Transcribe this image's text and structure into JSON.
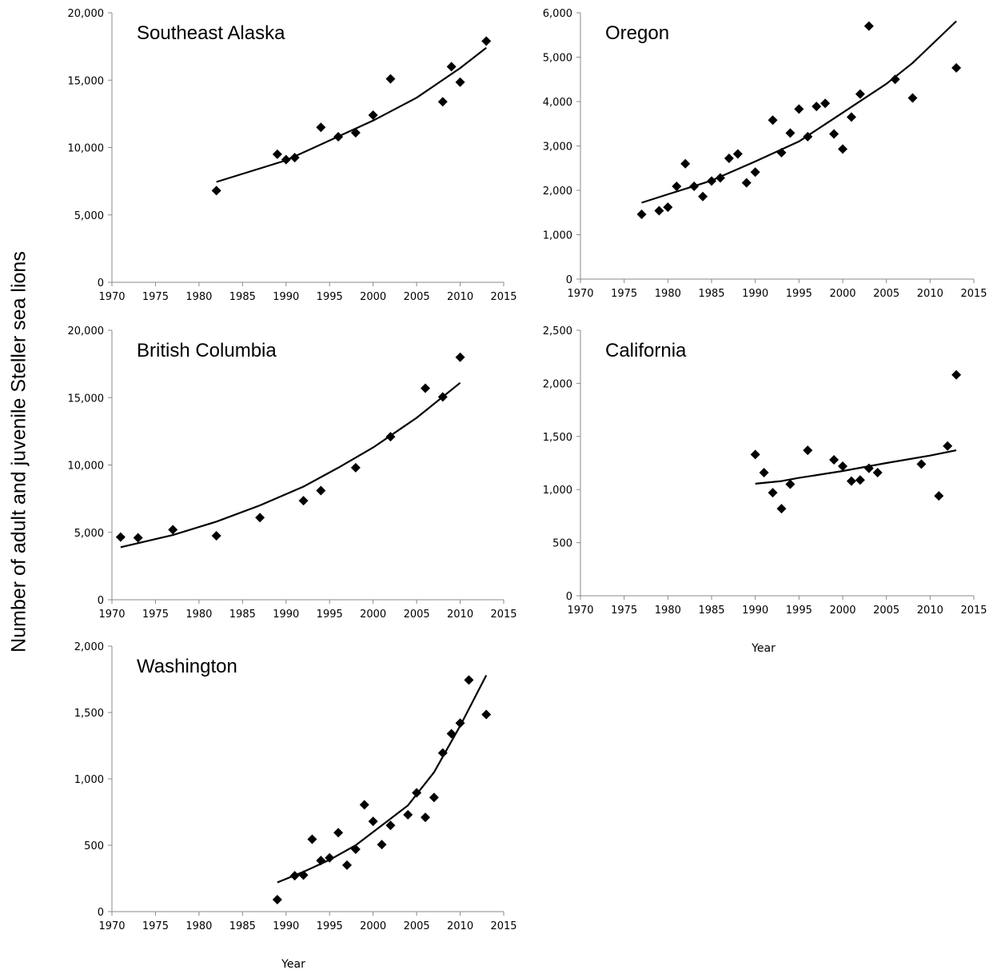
{
  "figure": {
    "y_title": "Number of adult and juvenile Steller sea lions",
    "x_title_right": "Year",
    "x_title_bottom": "Year"
  },
  "chart_data": [
    {
      "type": "scatter",
      "title": "Southeast Alaska",
      "xlabel": "",
      "ylabel": "",
      "xlim": [
        1970,
        2015
      ],
      "ylim": [
        0,
        20000
      ],
      "xticks": [
        "1970",
        "1975",
        "1980",
        "1985",
        "1990",
        "1995",
        "2000",
        "2005",
        "2010",
        "2015"
      ],
      "yticks": [
        "0",
        "5,000",
        "10,000",
        "15,000",
        "20,000"
      ],
      "points": [
        [
          1982,
          6800
        ],
        [
          1989,
          9500
        ],
        [
          1990,
          9100
        ],
        [
          1991,
          9250
        ],
        [
          1994,
          11500
        ],
        [
          1996,
          10800
        ],
        [
          1998,
          11100
        ],
        [
          2000,
          12400
        ],
        [
          2002,
          15100
        ],
        [
          2008,
          13400
        ],
        [
          2009,
          16000
        ],
        [
          2010,
          14850
        ],
        [
          2013,
          17900
        ]
      ],
      "trend": [
        [
          1982,
          7450
        ],
        [
          1990,
          9050
        ],
        [
          2000,
          12000
        ],
        [
          2005,
          13700
        ],
        [
          2010,
          15900
        ],
        [
          2013,
          17400
        ]
      ],
      "grid": false
    },
    {
      "type": "scatter",
      "title": "Oregon",
      "xlabel": "",
      "ylabel": "",
      "xlim": [
        1970,
        2015
      ],
      "ylim": [
        0,
        6000
      ],
      "xticks": [
        "1970",
        "1975",
        "1980",
        "1985",
        "1990",
        "1995",
        "2000",
        "2005",
        "2010",
        "2015"
      ],
      "yticks": [
        "0",
        "1,000",
        "2,000",
        "3,000",
        "4,000",
        "5,000",
        "6,000"
      ],
      "points": [
        [
          1977,
          1460
        ],
        [
          1979,
          1540
        ],
        [
          1980,
          1620
        ],
        [
          1981,
          2090
        ],
        [
          1982,
          2600
        ],
        [
          1983,
          2090
        ],
        [
          1984,
          1860
        ],
        [
          1985,
          2210
        ],
        [
          1986,
          2280
        ],
        [
          1987,
          2720
        ],
        [
          1988,
          2820
        ],
        [
          1989,
          2170
        ],
        [
          1990,
          2410
        ],
        [
          1992,
          3580
        ],
        [
          1993,
          2850
        ],
        [
          1994,
          3290
        ],
        [
          1995,
          3830
        ],
        [
          1996,
          3210
        ],
        [
          1997,
          3890
        ],
        [
          1998,
          3960
        ],
        [
          1999,
          3270
        ],
        [
          2000,
          2930
        ],
        [
          2001,
          3650
        ],
        [
          2002,
          4170
        ],
        [
          2003,
          5700
        ],
        [
          2006,
          4500
        ],
        [
          2008,
          4080
        ],
        [
          2013,
          4760
        ]
      ],
      "trend": [
        [
          1977,
          1720
        ],
        [
          1980,
          1910
        ],
        [
          1985,
          2220
        ],
        [
          1990,
          2650
        ],
        [
          1995,
          3100
        ],
        [
          2000,
          3750
        ],
        [
          2005,
          4400
        ],
        [
          2008,
          4870
        ],
        [
          2013,
          5810
        ]
      ],
      "grid": false
    },
    {
      "type": "scatter",
      "title": "British Columbia",
      "xlabel": "",
      "ylabel": "",
      "xlim": [
        1970,
        2015
      ],
      "ylim": [
        0,
        20000
      ],
      "xticks": [
        "1970",
        "1975",
        "1980",
        "1985",
        "1990",
        "1995",
        "2000",
        "2005",
        "2010",
        "2015"
      ],
      "yticks": [
        "0",
        "5,000",
        "10,000",
        "15,000",
        "20,000"
      ],
      "points": [
        [
          1971,
          4650
        ],
        [
          1973,
          4600
        ],
        [
          1977,
          5200
        ],
        [
          1982,
          4750
        ],
        [
          1987,
          6100
        ],
        [
          1992,
          7350
        ],
        [
          1994,
          8100
        ],
        [
          1998,
          9800
        ],
        [
          2002,
          12100
        ],
        [
          2006,
          15700
        ],
        [
          2008,
          15050
        ],
        [
          2010,
          18000
        ]
      ],
      "trend": [
        [
          1971,
          3900
        ],
        [
          1977,
          4800
        ],
        [
          1982,
          5800
        ],
        [
          1987,
          7000
        ],
        [
          1992,
          8400
        ],
        [
          1996,
          9800
        ],
        [
          2000,
          11300
        ],
        [
          2005,
          13500
        ],
        [
          2010,
          16100
        ]
      ],
      "grid": false
    },
    {
      "type": "scatter",
      "title": "California",
      "xlabel": "Year",
      "ylabel": "",
      "xlim": [
        1970,
        2015
      ],
      "ylim": [
        0,
        2500
      ],
      "xticks": [
        "1970",
        "1975",
        "1980",
        "1985",
        "1990",
        "1995",
        "2000",
        "2005",
        "2010",
        "2015"
      ],
      "yticks": [
        "0",
        "500",
        "1,000",
        "1,500",
        "2,000",
        "2,500"
      ],
      "points": [
        [
          1990,
          1330
        ],
        [
          1991,
          1160
        ],
        [
          1992,
          970
        ],
        [
          1993,
          820
        ],
        [
          1994,
          1050
        ],
        [
          1996,
          1370
        ],
        [
          1999,
          1280
        ],
        [
          2000,
          1220
        ],
        [
          2001,
          1080
        ],
        [
          2002,
          1090
        ],
        [
          2003,
          1200
        ],
        [
          2004,
          1160
        ],
        [
          2009,
          1240
        ],
        [
          2011,
          940
        ],
        [
          2012,
          1410
        ],
        [
          2013,
          2080
        ]
      ],
      "trend": [
        [
          1990,
          1055
        ],
        [
          1993,
          1080
        ],
        [
          1995,
          1110
        ],
        [
          2000,
          1175
        ],
        [
          2005,
          1250
        ],
        [
          2010,
          1320
        ],
        [
          2013,
          1370
        ]
      ],
      "grid": false
    },
    {
      "type": "scatter",
      "title": "Washington",
      "xlabel": "Year",
      "ylabel": "",
      "xlim": [
        1970,
        2015
      ],
      "ylim": [
        0,
        2000
      ],
      "xticks": [
        "1970",
        "1975",
        "1980",
        "1985",
        "1990",
        "1995",
        "2000",
        "2005",
        "2010",
        "2015"
      ],
      "yticks": [
        "0",
        "500",
        "1,000",
        "1,500",
        "2,000"
      ],
      "points": [
        [
          1989,
          90
        ],
        [
          1991,
          270
        ],
        [
          1992,
          275
        ],
        [
          1993,
          545
        ],
        [
          1994,
          385
        ],
        [
          1995,
          405
        ],
        [
          1996,
          595
        ],
        [
          1997,
          350
        ],
        [
          1998,
          470
        ],
        [
          1999,
          805
        ],
        [
          2000,
          680
        ],
        [
          2001,
          505
        ],
        [
          2002,
          650
        ],
        [
          2004,
          730
        ],
        [
          2005,
          895
        ],
        [
          2006,
          710
        ],
        [
          2007,
          860
        ],
        [
          2008,
          1195
        ],
        [
          2009,
          1340
        ],
        [
          2010,
          1420
        ],
        [
          2011,
          1745
        ],
        [
          2013,
          1485
        ]
      ],
      "trend": [
        [
          1989,
          220
        ],
        [
          1992,
          300
        ],
        [
          1995,
          390
        ],
        [
          1998,
          500
        ],
        [
          2001,
          650
        ],
        [
          2004,
          800
        ],
        [
          2007,
          1050
        ],
        [
          2010,
          1400
        ],
        [
          2013,
          1780
        ]
      ],
      "grid": false
    }
  ]
}
